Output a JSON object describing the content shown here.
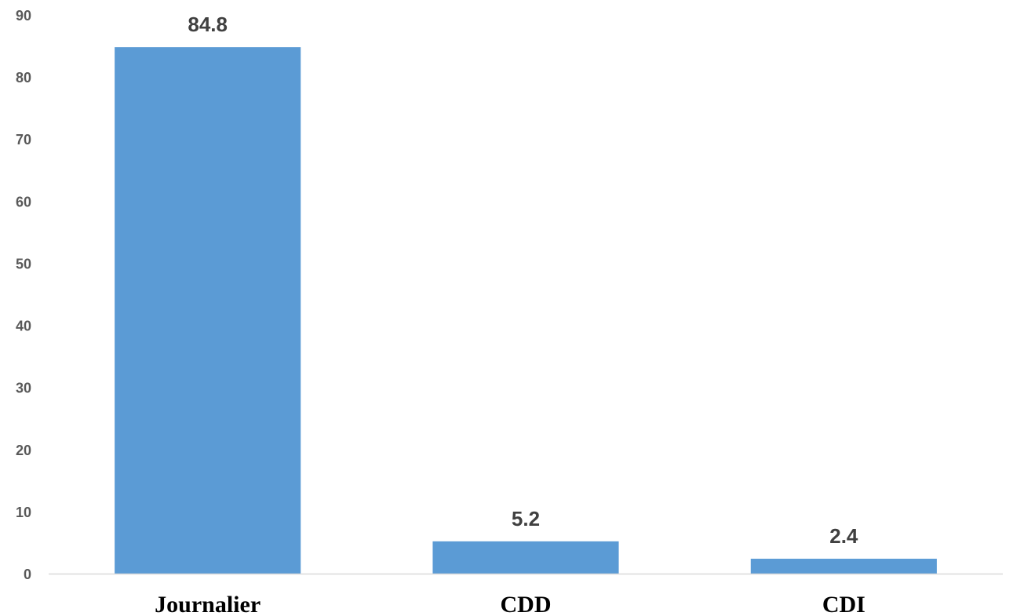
{
  "chart_data": {
    "type": "bar",
    "categories": [
      "Journalier",
      "CDD",
      "CDI"
    ],
    "values": [
      84.8,
      5.2,
      2.4
    ],
    "data_labels": [
      "84.8",
      "5.2",
      "2.4"
    ],
    "y_ticks": [
      "0",
      "10",
      "20",
      "30",
      "40",
      "50",
      "60",
      "70",
      "80",
      "90"
    ],
    "ylim": [
      0,
      90
    ],
    "grid": false,
    "legend": "none",
    "colors": {
      "bar": "#5b9bd5",
      "axis": "#d9d9d9"
    }
  }
}
